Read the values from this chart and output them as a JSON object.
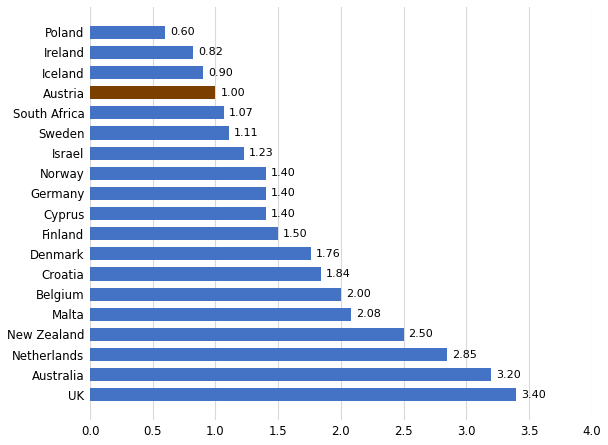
{
  "categories": [
    "Poland",
    "Ireland",
    "Iceland",
    "Austria",
    "South Africa",
    "Sweden",
    "Israel",
    "Norway",
    "Germany",
    "Cyprus",
    "Finland",
    "Denmark",
    "Croatia",
    "Belgium",
    "Malta",
    "New Zealand",
    "Netherlands",
    "Australia",
    "UK"
  ],
  "values": [
    0.6,
    0.82,
    0.9,
    1.0,
    1.07,
    1.11,
    1.23,
    1.4,
    1.4,
    1.4,
    1.5,
    1.76,
    1.84,
    2.0,
    2.08,
    2.5,
    2.85,
    3.2,
    3.4
  ],
  "bar_colors": [
    "#4472C4",
    "#4472C4",
    "#4472C4",
    "#7B3F00",
    "#4472C4",
    "#4472C4",
    "#4472C4",
    "#4472C4",
    "#4472C4",
    "#4472C4",
    "#4472C4",
    "#4472C4",
    "#4472C4",
    "#4472C4",
    "#4472C4",
    "#4472C4",
    "#4472C4",
    "#4472C4",
    "#4472C4"
  ],
  "xlim": [
    0,
    4.0
  ],
  "xticks": [
    0.0,
    0.5,
    1.0,
    1.5,
    2.0,
    2.5,
    3.0,
    3.5,
    4.0
  ],
  "xtick_labels": [
    "0.0",
    "0.5",
    "1.0",
    "1.5",
    "2.0",
    "2.5",
    "3.0",
    "3.5",
    "4.0"
  ],
  "background_color": "#FFFFFF",
  "grid_color": "#D9D9D9",
  "bar_height": 0.65,
  "value_fontsize": 8,
  "tick_fontsize": 8.5,
  "label_fontsize": 8.5
}
